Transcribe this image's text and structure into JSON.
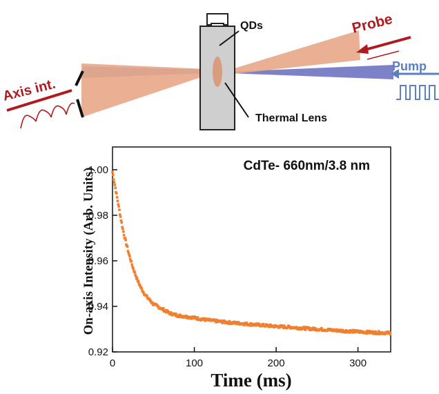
{
  "diagram": {
    "label_qds": "QDs",
    "label_probe": "Probe",
    "label_pump": "Pump",
    "label_axis": "Axis int.",
    "label_lens": "Thermal Lens",
    "colors": {
      "probe_beam": "#e8a787",
      "pump_beam": "#6f74c2",
      "probe_text": "#b0191e",
      "pump_text": "#5b7fc3",
      "cuvette": "#d0d0d0"
    }
  },
  "chart_data": {
    "type": "scatter",
    "annotation": "CdTe- 660nm/3.8 nm",
    "xlabel": "Time (ms)",
    "ylabel": "On-axis Intensity (Arb. Units)",
    "xlim": [
      0,
      340
    ],
    "ylim": [
      0.92,
      1.01
    ],
    "x_ticks": [
      "0",
      "100",
      "200",
      "300"
    ],
    "y_ticks": [
      "0.92",
      "0.94",
      "0.96",
      "0.98",
      "1.00"
    ],
    "x_tick_values": [
      0,
      100,
      200,
      300
    ],
    "y_tick_values": [
      0.92,
      0.94,
      0.96,
      0.98,
      1.0
    ],
    "grid": false,
    "color": "#f08030",
    "series": [
      {
        "x": [
          0,
          2,
          4,
          6,
          8,
          10,
          12,
          15,
          18,
          20,
          25,
          30,
          35,
          40,
          45,
          50,
          55,
          60,
          65,
          70,
          75,
          80,
          90,
          100,
          110,
          120,
          130,
          140,
          150,
          160,
          170,
          180,
          190,
          200,
          210,
          220,
          230,
          240,
          250,
          260,
          270,
          280,
          290,
          300,
          310,
          320,
          330,
          340
        ],
        "y": [
          0.999,
          0.995,
          0.991,
          0.987,
          0.983,
          0.979,
          0.975,
          0.97,
          0.966,
          0.963,
          0.957,
          0.952,
          0.948,
          0.945,
          0.943,
          0.941,
          0.94,
          0.939,
          0.938,
          0.937,
          0.9365,
          0.936,
          0.9355,
          0.935,
          0.9343,
          0.9338,
          0.9334,
          0.933,
          0.9327,
          0.9324,
          0.9321,
          0.9318,
          0.9315,
          0.9312,
          0.931,
          0.9308,
          0.9305,
          0.9302,
          0.93,
          0.9298,
          0.9295,
          0.9293,
          0.9291,
          0.9289,
          0.9287,
          0.9285,
          0.9284,
          0.9283
        ]
      }
    ]
  }
}
